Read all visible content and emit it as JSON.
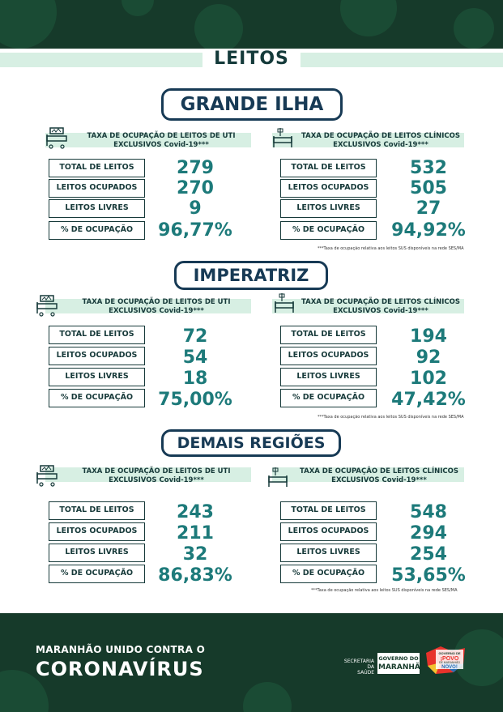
{
  "page_title": "LEITOS",
  "regions": [
    {
      "name": "GRANDE ILHA",
      "uti": {
        "header": [
          "TAXA DE OCUPAÇÃO DE LEITOS DE UTI",
          "EXCLUSIVOS Covid-19***"
        ],
        "rows": [
          {
            "label": "TOTAL DE LEITOS",
            "value": "279"
          },
          {
            "label": "LEITOS OCUPADOS",
            "value": "270"
          },
          {
            "label": "LEITOS LIVRES",
            "value": "9"
          },
          {
            "label": "% DE OCUPAÇÃO",
            "value": "96,77%"
          }
        ]
      },
      "clinicos": {
        "header": [
          "TAXA DE OCUPAÇÃO DE LEITOS CLÍNICOS",
          "EXCLUSIVOS Covid-19***"
        ],
        "rows": [
          {
            "label": "TOTAL DE LEITOS",
            "value": "532"
          },
          {
            "label": "LEITOS OCUPADOS",
            "value": "505"
          },
          {
            "label": "LEITOS LIVRES",
            "value": "27"
          },
          {
            "label": "% DE OCUPAÇÃO",
            "value": "94,92%"
          }
        ],
        "footnote": "***Taxa de ocupação relativa aos leitos SUS disponíveis na rede SES/MA"
      }
    },
    {
      "name": "IMPERATRIZ",
      "uti": {
        "header": [
          "TAXA DE OCUPAÇÃO DE LEITOS DE UTI",
          "EXCLUSIVOS Covid-19***"
        ],
        "rows": [
          {
            "label": "TOTAL DE LEITOS",
            "value": "72"
          },
          {
            "label": "LEITOS OCUPADOS",
            "value": "54"
          },
          {
            "label": "LEITOS LIVRES",
            "value": "18"
          },
          {
            "label": "% DE OCUPAÇÃO",
            "value": "75,00%"
          }
        ]
      },
      "clinicos": {
        "header": [
          "TAXA DE OCUPAÇÃO DE LEITOS CLÍNICOS",
          "EXCLUSIVOS Covid-19***"
        ],
        "rows": [
          {
            "label": "TOTAL DE LEITOS",
            "value": "194"
          },
          {
            "label": "LEITOS OCUPADOS",
            "value": "92"
          },
          {
            "label": "LEITOS LIVRES",
            "value": "102"
          },
          {
            "label": "% DE OCUPAÇÃO",
            "value": "47,42%"
          }
        ],
        "footnote": "***Taxa de ocupação relativa aos leitos SUS disponíveis na rede SES/MA"
      }
    },
    {
      "name": "DEMAIS REGIÕES",
      "uti": {
        "header": [
          "TAXA DE OCUPAÇÃO DE LEITOS DE UTI",
          "EXCLUSIVOS Covid-19***"
        ],
        "rows": [
          {
            "label": "TOTAL DE LEITOS",
            "value": "243"
          },
          {
            "label": "LEITOS OCUPADOS",
            "value": "211"
          },
          {
            "label": "LEITOS LIVRES",
            "value": "32"
          },
          {
            "label": "% DE OCUPAÇÃO",
            "value": "86,83%"
          }
        ]
      },
      "clinicos": {
        "header": [
          "TAXA DE OCUPAÇÃO DE LEITOS CLÍNICOS",
          "EXCLUSIVOS Covid-19***"
        ],
        "rows": [
          {
            "label": "TOTAL DE LEITOS",
            "value": "548"
          },
          {
            "label": "LEITOS OCUPADOS",
            "value": "294"
          },
          {
            "label": "LEITOS LIVRES",
            "value": "254"
          },
          {
            "label": "% DE OCUPAÇÃO",
            "value": "53,65%"
          }
        ],
        "footnote": "***Taxa de ocupação relativa aos leitos SUS disponíveis na rede SES/MA"
      }
    }
  ],
  "footer": {
    "campaign_line1": "MARANHÃO UNIDO CONTRA O",
    "campaign_line2": "CORONAVÍRUS",
    "secretaria": [
      "SECRETARIA DA",
      "SAÚDE"
    ],
    "governo": [
      "GOVERNO DO",
      "MARANHÃO"
    ],
    "slogan_logo": [
      "GOVERNO DE",
      "¡POVO",
      "DE MARANHÃO",
      "NOVO!"
    ]
  },
  "colors": {
    "dark_green": "#163a2a",
    "mint": "#d7efe3",
    "navy": "#173a55",
    "teal_value": "#1d7a7a"
  },
  "icons": {
    "uti": "icu-bed-icon",
    "clinico": "hospital-bed-icon"
  }
}
